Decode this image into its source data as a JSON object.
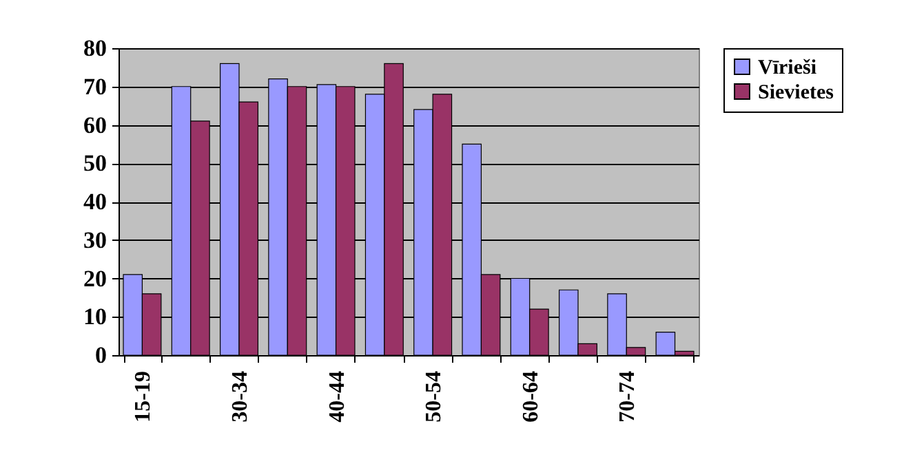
{
  "chart_data": {
    "type": "bar",
    "categories": [
      "15-19",
      null,
      "30-34",
      null,
      "40-44",
      null,
      "50-54",
      null,
      "60-64",
      null,
      "70-74",
      null
    ],
    "series": [
      {
        "name": "Vīrieši",
        "color": "#9999ff",
        "values": [
          21,
          70,
          76,
          72,
          70.5,
          68,
          64,
          55,
          20,
          17,
          16,
          6
        ]
      },
      {
        "name": "Sievietes",
        "color": "#993366",
        "values": [
          16,
          61,
          66,
          70,
          70,
          76,
          68,
          21,
          12,
          3,
          2,
          1
        ]
      }
    ],
    "ylim": [
      0,
      80
    ],
    "yticks": [
      0,
      10,
      20,
      30,
      40,
      50,
      60,
      70,
      80
    ],
    "grid": "y",
    "legend": "right"
  }
}
